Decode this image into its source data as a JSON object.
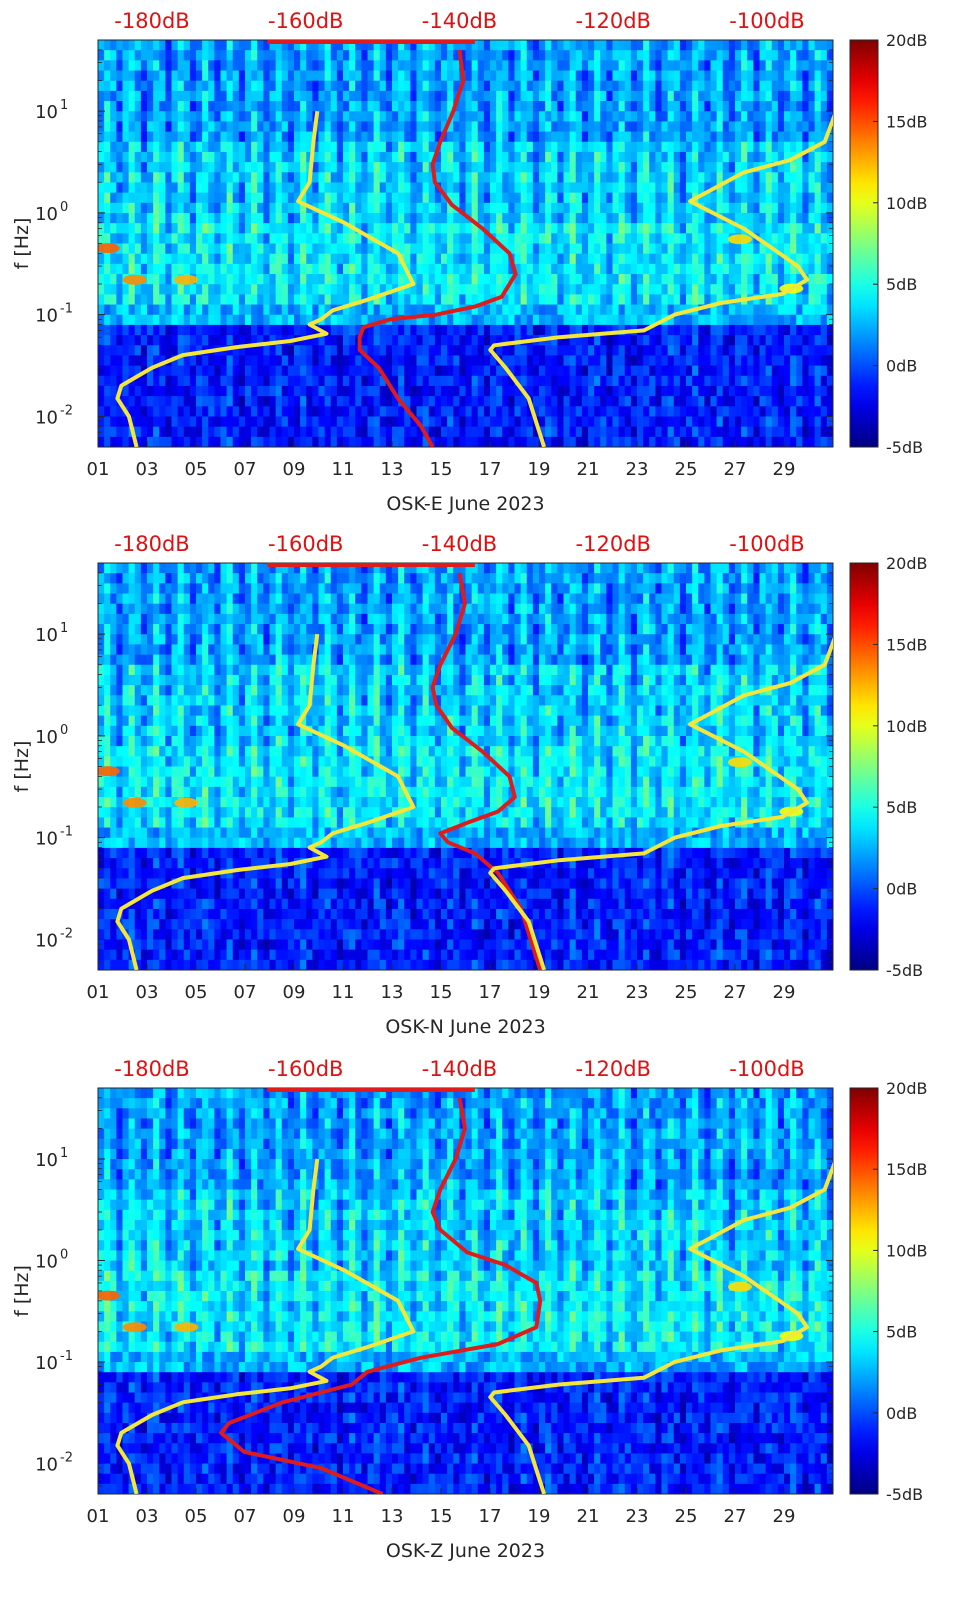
{
  "chart_data": [
    {
      "type": "heatmap",
      "title": "",
      "xlabel": "OSK-E June 2023",
      "ylabel": "f [Hz]",
      "x_ticks": [
        "01",
        "03",
        "05",
        "07",
        "09",
        "11",
        "13",
        "15",
        "17",
        "19",
        "21",
        "23",
        "25",
        "27",
        "29"
      ],
      "x_range": [
        1,
        31
      ],
      "y_scale": "log",
      "y_range": [
        0.005,
        50
      ],
      "y_ticks": [
        {
          "base": "10",
          "exp": "-2"
        },
        {
          "base": "10",
          "exp": "-1"
        },
        {
          "base": "10",
          "exp": "0"
        },
        {
          "base": "10",
          "exp": "1"
        }
      ],
      "top_axis_labels": [
        "-180dB",
        "-160dB",
        "-140dB",
        "-120dB",
        "-100dB"
      ],
      "colorbar": {
        "range": [
          -5,
          20
        ],
        "ticks": [
          "20dB",
          "15dB",
          "10dB",
          "5dB",
          "0dB",
          "-5dB"
        ],
        "colormap": "jet"
      },
      "series": [
        {
          "name": "red-psd-curve",
          "color": "#e01b1b",
          "points": [
            [
              -140,
              40
            ],
            [
              -139.5,
              20
            ],
            [
              -140.8,
              10
            ],
            [
              -142.5,
              5
            ],
            [
              -143.5,
              3
            ],
            [
              -143.2,
              2
            ],
            [
              -141,
              1.2
            ],
            [
              -137,
              0.7
            ],
            [
              -133.5,
              0.4
            ],
            [
              -132.7,
              0.25
            ],
            [
              -134.5,
              0.15
            ],
            [
              -138,
              0.12
            ],
            [
              -143,
              0.1
            ],
            [
              -149,
              0.09
            ],
            [
              -152.5,
              0.075
            ],
            [
              -153,
              0.06
            ],
            [
              -153,
              0.045
            ],
            [
              -150.5,
              0.03
            ],
            [
              -148,
              0.015
            ],
            [
              -145,
              0.008
            ],
            [
              -143.5,
              0.005
            ]
          ]
        },
        {
          "name": "yellow-noise-model-low",
          "color": "#f5e63a",
          "points": [
            [
              -158.5,
              10
            ],
            [
              -159,
              5
            ],
            [
              -159.5,
              2
            ],
            [
              -161,
              1.3
            ],
            [
              -155,
              0.8
            ],
            [
              -148,
              0.4
            ],
            [
              -146,
              0.2
            ],
            [
              -152,
              0.14
            ],
            [
              -156.5,
              0.11
            ],
            [
              -158,
              0.09
            ],
            [
              -159.5,
              0.08
            ],
            [
              -157.3,
              0.065
            ],
            [
              -162,
              0.055
            ],
            [
              -169,
              0.048
            ],
            [
              -176,
              0.04
            ],
            [
              -180,
              0.03
            ],
            [
              -184,
              0.02
            ],
            [
              -184.5,
              0.015
            ],
            [
              -183,
              0.01
            ],
            [
              -182,
              0.005
            ]
          ]
        },
        {
          "name": "yellow-noise-model-high",
          "color": "#f5e63a",
          "points": [
            [
              -91,
              10
            ],
            [
              -92.5,
              5
            ],
            [
              -97,
              3.3
            ],
            [
              -103,
              2.5
            ],
            [
              -110,
              1.3
            ],
            [
              -103,
              0.7
            ],
            [
              -96,
              0.3
            ],
            [
              -94.8,
              0.22
            ],
            [
              -98,
              0.16
            ],
            [
              -106,
              0.13
            ],
            [
              -112,
              0.1
            ],
            [
              -116,
              0.07
            ],
            [
              -127,
              0.06
            ],
            [
              -135.5,
              0.05
            ],
            [
              -136,
              0.045
            ],
            [
              -134,
              0.03
            ],
            [
              -131,
              0.015
            ],
            [
              -129,
              0.005
            ]
          ]
        }
      ]
    },
    {
      "type": "heatmap",
      "title": "",
      "xlabel": "OSK-N June 2023",
      "ylabel": "f [Hz]",
      "x_ticks": [
        "01",
        "03",
        "05",
        "07",
        "09",
        "11",
        "13",
        "15",
        "17",
        "19",
        "21",
        "23",
        "25",
        "27",
        "29"
      ],
      "x_range": [
        1,
        31
      ],
      "y_scale": "log",
      "y_range": [
        0.005,
        50
      ],
      "y_ticks": [
        {
          "base": "10",
          "exp": "-2"
        },
        {
          "base": "10",
          "exp": "-1"
        },
        {
          "base": "10",
          "exp": "0"
        },
        {
          "base": "10",
          "exp": "1"
        }
      ],
      "top_axis_labels": [
        "-180dB",
        "-160dB",
        "-140dB",
        "-120dB",
        "-100dB"
      ],
      "colorbar": {
        "range": [
          -5,
          20
        ],
        "ticks": [
          "20dB",
          "15dB",
          "10dB",
          "5dB",
          "0dB",
          "-5dB"
        ],
        "colormap": "jet"
      },
      "series": [
        {
          "name": "red-psd-curve",
          "color": "#e01b1b",
          "points": [
            [
              -140,
              40
            ],
            [
              -139.3,
              20
            ],
            [
              -140.5,
              10
            ],
            [
              -142.5,
              5
            ],
            [
              -143.5,
              3
            ],
            [
              -143,
              2
            ],
            [
              -141,
              1.2
            ],
            [
              -137,
              0.7
            ],
            [
              -133.5,
              0.4
            ],
            [
              -132.8,
              0.25
            ],
            [
              -135,
              0.18
            ],
            [
              -139,
              0.14
            ],
            [
              -142.5,
              0.11
            ],
            [
              -141.5,
              0.09
            ],
            [
              -138,
              0.07
            ],
            [
              -135,
              0.045
            ],
            [
              -132,
              0.02
            ],
            [
              -129.5,
              0.005
            ]
          ]
        },
        {
          "name": "yellow-noise-model-low",
          "color": "#f5e63a",
          "points": [
            [
              -158.5,
              10
            ],
            [
              -159,
              5
            ],
            [
              -159.5,
              2
            ],
            [
              -161,
              1.3
            ],
            [
              -155,
              0.8
            ],
            [
              -148,
              0.4
            ],
            [
              -146,
              0.2
            ],
            [
              -152,
              0.14
            ],
            [
              -156.5,
              0.11
            ],
            [
              -158,
              0.09
            ],
            [
              -159.5,
              0.08
            ],
            [
              -157.3,
              0.065
            ],
            [
              -162,
              0.055
            ],
            [
              -169,
              0.048
            ],
            [
              -176,
              0.04
            ],
            [
              -180,
              0.03
            ],
            [
              -184,
              0.02
            ],
            [
              -184.5,
              0.015
            ],
            [
              -183,
              0.01
            ],
            [
              -182,
              0.005
            ]
          ]
        },
        {
          "name": "yellow-noise-model-high",
          "color": "#f5e63a",
          "points": [
            [
              -91,
              10
            ],
            [
              -92.5,
              5
            ],
            [
              -97,
              3.3
            ],
            [
              -103,
              2.5
            ],
            [
              -110,
              1.3
            ],
            [
              -103,
              0.7
            ],
            [
              -96,
              0.3
            ],
            [
              -94.8,
              0.22
            ],
            [
              -98,
              0.16
            ],
            [
              -106,
              0.13
            ],
            [
              -112,
              0.1
            ],
            [
              -116,
              0.07
            ],
            [
              -127,
              0.06
            ],
            [
              -135.5,
              0.05
            ],
            [
              -136,
              0.045
            ],
            [
              -134,
              0.03
            ],
            [
              -131,
              0.015
            ],
            [
              -129,
              0.005
            ]
          ]
        }
      ]
    },
    {
      "type": "heatmap",
      "title": "",
      "xlabel": "OSK-Z June 2023",
      "ylabel": "f [Hz]",
      "x_ticks": [
        "01",
        "03",
        "05",
        "07",
        "09",
        "11",
        "13",
        "15",
        "17",
        "19",
        "21",
        "23",
        "25",
        "27",
        "29"
      ],
      "x_range": [
        1,
        31
      ],
      "y_scale": "log",
      "y_range": [
        0.005,
        50
      ],
      "y_ticks": [
        {
          "base": "10",
          "exp": "-2"
        },
        {
          "base": "10",
          "exp": "-1"
        },
        {
          "base": "10",
          "exp": "0"
        },
        {
          "base": "10",
          "exp": "1"
        }
      ],
      "top_axis_labels": [
        "-180dB",
        "-160dB",
        "-140dB",
        "-120dB",
        "-100dB"
      ],
      "colorbar": {
        "range": [
          -5,
          20
        ],
        "ticks": [
          "20dB",
          "15dB",
          "10dB",
          "5dB",
          "0dB",
          "-5dB"
        ],
        "colormap": "jet"
      },
      "series": [
        {
          "name": "red-psd-curve",
          "color": "#e01b1b",
          "points": [
            [
              -140,
              40
            ],
            [
              -139.3,
              20
            ],
            [
              -140.5,
              10
            ],
            [
              -142.5,
              5
            ],
            [
              -143.5,
              3
            ],
            [
              -142.5,
              2
            ],
            [
              -139,
              1.2
            ],
            [
              -134,
              0.9
            ],
            [
              -130,
              0.6
            ],
            [
              -129.5,
              0.4
            ],
            [
              -130,
              0.22
            ],
            [
              -135,
              0.15
            ],
            [
              -145,
              0.11
            ],
            [
              -152,
              0.08
            ],
            [
              -154,
              0.06
            ],
            [
              -163,
              0.04
            ],
            [
              -170,
              0.025
            ],
            [
              -171,
              0.02
            ],
            [
              -168,
              0.013
            ],
            [
              -158,
              0.009
            ],
            [
              -150,
              0.005
            ]
          ]
        },
        {
          "name": "yellow-noise-model-low",
          "color": "#f5e63a",
          "points": [
            [
              -158.5,
              10
            ],
            [
              -159,
              5
            ],
            [
              -159.5,
              2
            ],
            [
              -161,
              1.3
            ],
            [
              -155,
              0.8
            ],
            [
              -148,
              0.4
            ],
            [
              -146,
              0.2
            ],
            [
              -152,
              0.14
            ],
            [
              -156.5,
              0.11
            ],
            [
              -158,
              0.09
            ],
            [
              -159.5,
              0.08
            ],
            [
              -157.3,
              0.065
            ],
            [
              -162,
              0.055
            ],
            [
              -169,
              0.048
            ],
            [
              -176,
              0.04
            ],
            [
              -180,
              0.03
            ],
            [
              -184,
              0.02
            ],
            [
              -184.5,
              0.015
            ],
            [
              -183,
              0.01
            ],
            [
              -182,
              0.005
            ]
          ]
        },
        {
          "name": "yellow-noise-model-high",
          "color": "#f5e63a",
          "points": [
            [
              -91,
              10
            ],
            [
              -92.5,
              5
            ],
            [
              -97,
              3.3
            ],
            [
              -103,
              2.5
            ],
            [
              -110,
              1.3
            ],
            [
              -103,
              0.7
            ],
            [
              -96,
              0.3
            ],
            [
              -94.8,
              0.22
            ],
            [
              -98,
              0.16
            ],
            [
              -106,
              0.13
            ],
            [
              -112,
              0.1
            ],
            [
              -116,
              0.07
            ],
            [
              -127,
              0.06
            ],
            [
              -135.5,
              0.05
            ],
            [
              -136,
              0.045
            ],
            [
              -134,
              0.03
            ],
            [
              -131,
              0.015
            ],
            [
              -129,
              0.005
            ]
          ]
        }
      ]
    }
  ]
}
